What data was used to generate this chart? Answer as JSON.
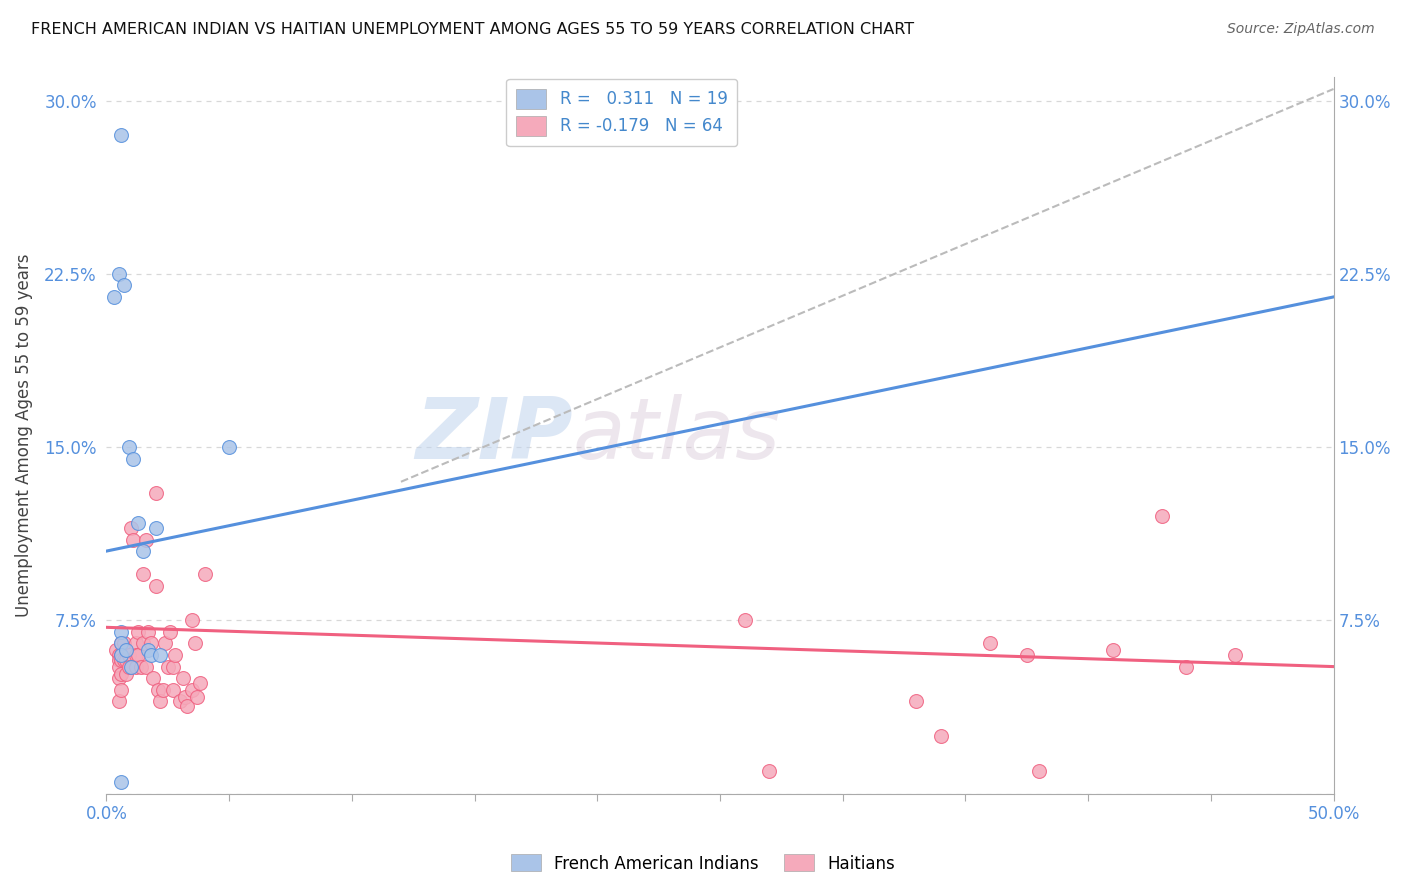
{
  "title": "FRENCH AMERICAN INDIAN VS HAITIAN UNEMPLOYMENT AMONG AGES 55 TO 59 YEARS CORRELATION CHART",
  "source": "Source: ZipAtlas.com",
  "ylabel": "Unemployment Among Ages 55 to 59 years",
  "xlim": [
    0.0,
    0.5
  ],
  "ylim": [
    0.0,
    0.31
  ],
  "x_ticks": [
    0.0,
    0.05,
    0.1,
    0.15,
    0.2,
    0.25,
    0.3,
    0.35,
    0.4,
    0.45,
    0.5
  ],
  "x_tick_labels": [
    "0.0%",
    "",
    "",
    "",
    "",
    "",
    "",
    "",
    "",
    "",
    "50.0%"
  ],
  "y_ticks": [
    0.0,
    0.075,
    0.15,
    0.225,
    0.3
  ],
  "y_tick_labels": [
    "",
    "7.5%",
    "15.0%",
    "22.5%",
    "30.0%"
  ],
  "background_color": "#ffffff",
  "grid_color": "#d8d8d8",
  "watermark_text": "ZIPatlas",
  "french_color": "#aac4e8",
  "haitian_color": "#f5aabb",
  "french_line_color": "#5590dd",
  "haitian_line_color": "#f06080",
  "trend_dashed_color": "#bbbbbb",
  "legend_R_french": "0.311",
  "legend_N_french": "19",
  "legend_R_haitian": "-0.179",
  "legend_N_haitian": "64",
  "french_x": [
    0.003,
    0.005,
    0.006,
    0.006,
    0.006,
    0.006,
    0.006,
    0.007,
    0.008,
    0.009,
    0.01,
    0.011,
    0.013,
    0.015,
    0.017,
    0.018,
    0.02,
    0.022,
    0.05
  ],
  "french_y": [
    0.215,
    0.225,
    0.285,
    0.07,
    0.065,
    0.06,
    0.005,
    0.22,
    0.062,
    0.15,
    0.055,
    0.145,
    0.117,
    0.105,
    0.062,
    0.06,
    0.115,
    0.06,
    0.15
  ],
  "haitian_x": [
    0.004,
    0.005,
    0.005,
    0.005,
    0.005,
    0.005,
    0.006,
    0.006,
    0.006,
    0.006,
    0.006,
    0.007,
    0.007,
    0.008,
    0.008,
    0.009,
    0.009,
    0.01,
    0.011,
    0.012,
    0.012,
    0.012,
    0.013,
    0.013,
    0.014,
    0.015,
    0.015,
    0.016,
    0.016,
    0.017,
    0.018,
    0.019,
    0.02,
    0.02,
    0.021,
    0.022,
    0.023,
    0.024,
    0.025,
    0.026,
    0.027,
    0.027,
    0.028,
    0.03,
    0.031,
    0.032,
    0.033,
    0.035,
    0.035,
    0.036,
    0.037,
    0.038,
    0.04,
    0.26,
    0.27,
    0.33,
    0.34,
    0.36,
    0.375,
    0.38,
    0.41,
    0.43,
    0.44,
    0.46
  ],
  "haitian_y": [
    0.062,
    0.06,
    0.058,
    0.055,
    0.05,
    0.04,
    0.065,
    0.06,
    0.058,
    0.052,
    0.045,
    0.065,
    0.058,
    0.058,
    0.052,
    0.06,
    0.055,
    0.115,
    0.11,
    0.065,
    0.06,
    0.055,
    0.07,
    0.06,
    0.055,
    0.095,
    0.065,
    0.11,
    0.055,
    0.07,
    0.065,
    0.05,
    0.13,
    0.09,
    0.045,
    0.04,
    0.045,
    0.065,
    0.055,
    0.07,
    0.055,
    0.045,
    0.06,
    0.04,
    0.05,
    0.042,
    0.038,
    0.075,
    0.045,
    0.065,
    0.042,
    0.048,
    0.095,
    0.075,
    0.01,
    0.04,
    0.025,
    0.065,
    0.06,
    0.01,
    0.062,
    0.12,
    0.055,
    0.06
  ],
  "french_trend_x": [
    0.0,
    0.5
  ],
  "french_trend_y_start": 0.105,
  "french_trend_y_end": 0.215,
  "haitian_trend_y_start": 0.072,
  "haitian_trend_y_end": 0.055,
  "dashed_trend_x": [
    0.12,
    0.5
  ],
  "dashed_trend_y_start": 0.135,
  "dashed_trend_y_end": 0.305
}
